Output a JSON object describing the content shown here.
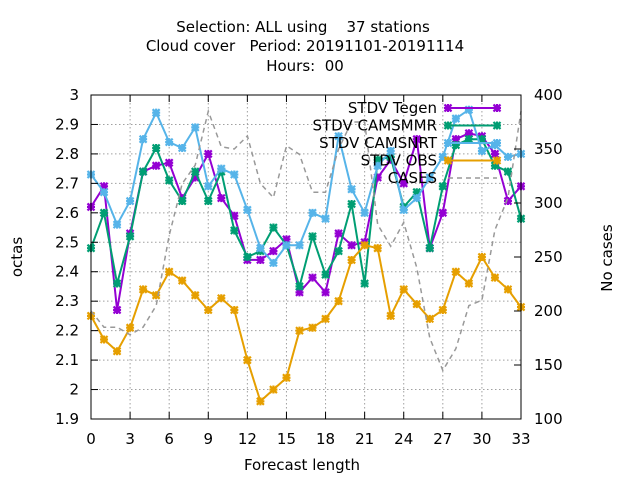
{
  "chart_data": {
    "type": "line",
    "title_lines": [
      "Selection: ALL using    37 stations",
      "Cloud cover   Period: 20191101-20191114",
      "Hours:  00"
    ],
    "xlabel": "Forecast length",
    "ylabel": "octas",
    "y2label": "No cases",
    "xlim": [
      0,
      33
    ],
    "ylim": [
      1.9,
      3.0
    ],
    "y2lim": [
      100,
      400
    ],
    "xticks": [
      0,
      3,
      6,
      9,
      12,
      15,
      18,
      21,
      24,
      27,
      30,
      33
    ],
    "yticks": [
      1.9,
      2,
      2.1,
      2.2,
      2.3,
      2.4,
      2.5,
      2.6,
      2.7,
      2.8,
      2.9,
      3
    ],
    "ytick_labels": [
      "1.9",
      "2",
      "2.1",
      "2.2",
      "2.3",
      "2.4",
      "2.5",
      "2.6",
      "2.7",
      "2.8",
      "2.9",
      "3"
    ],
    "y2ticks": [
      100,
      150,
      200,
      250,
      300,
      350,
      400
    ],
    "grid": true,
    "legend_position": "top-right",
    "x": [
      0,
      1,
      2,
      3,
      4,
      5,
      6,
      7,
      8,
      9,
      10,
      11,
      12,
      13,
      14,
      15,
      16,
      17,
      18,
      19,
      20,
      21,
      22,
      23,
      24,
      25,
      26,
      27,
      28,
      29,
      30,
      31,
      32,
      33
    ],
    "series": [
      {
        "name": "STDV Tegen",
        "color": "#9400d3",
        "axis": "y1",
        "style": "line-marker",
        "values": [
          2.62,
          2.69,
          2.27,
          2.53,
          2.74,
          2.76,
          2.77,
          2.65,
          2.72,
          2.8,
          2.65,
          2.59,
          2.44,
          2.44,
          2.47,
          2.51,
          2.33,
          2.38,
          2.33,
          2.53,
          2.49,
          2.5,
          2.72,
          2.78,
          2.7,
          2.85,
          2.48,
          2.6,
          2.85,
          2.87,
          2.86,
          2.8,
          2.64,
          2.69
        ]
      },
      {
        "name": "STDV CAMSMMR",
        "color": "#009e73",
        "axis": "y1",
        "style": "line-marker",
        "values": [
          2.48,
          2.6,
          2.36,
          2.52,
          2.74,
          2.82,
          2.71,
          2.64,
          2.74,
          2.64,
          2.74,
          2.54,
          2.45,
          2.47,
          2.55,
          2.49,
          2.35,
          2.52,
          2.39,
          2.47,
          2.63,
          2.36,
          2.78,
          2.79,
          2.62,
          2.67,
          2.48,
          2.69,
          2.83,
          2.85,
          2.85,
          2.76,
          2.74,
          2.58
        ]
      },
      {
        "name": "STDV CAMSNRT",
        "color": "#56b4e9",
        "axis": "y1",
        "style": "line-marker",
        "values": [
          2.73,
          2.67,
          2.56,
          2.64,
          2.85,
          2.94,
          2.84,
          2.82,
          2.89,
          2.69,
          2.75,
          2.73,
          2.61,
          2.48,
          2.43,
          2.49,
          2.49,
          2.6,
          2.58,
          2.86,
          2.68,
          2.6,
          2.76,
          2.81,
          2.61,
          2.65,
          2.72,
          2.79,
          2.92,
          2.95,
          2.81,
          2.83,
          2.79,
          2.8
        ]
      },
      {
        "name": "STDV OBS",
        "color": "#e69f00",
        "axis": "y1",
        "style": "line-marker",
        "values": [
          2.25,
          2.17,
          2.13,
          2.21,
          2.34,
          2.32,
          2.4,
          2.37,
          2.32,
          2.27,
          2.31,
          2.27,
          2.1,
          1.96,
          2.0,
          2.04,
          2.2,
          2.21,
          2.24,
          2.3,
          2.44,
          2.49,
          2.48,
          2.25,
          2.34,
          2.29,
          2.24,
          2.27,
          2.4,
          2.36,
          2.45,
          2.38,
          2.34,
          2.28
        ]
      },
      {
        "name": "CASES",
        "color": "#999999",
        "axis": "y2",
        "style": "dashed",
        "values": [
          200,
          185,
          185,
          178,
          185,
          205,
          270,
          318,
          335,
          385,
          352,
          350,
          362,
          318,
          305,
          353,
          345,
          310,
          310,
          350,
          375,
          375,
          280,
          260,
          282,
          240,
          175,
          145,
          165,
          205,
          210,
          275,
          305,
          385
        ]
      }
    ]
  }
}
